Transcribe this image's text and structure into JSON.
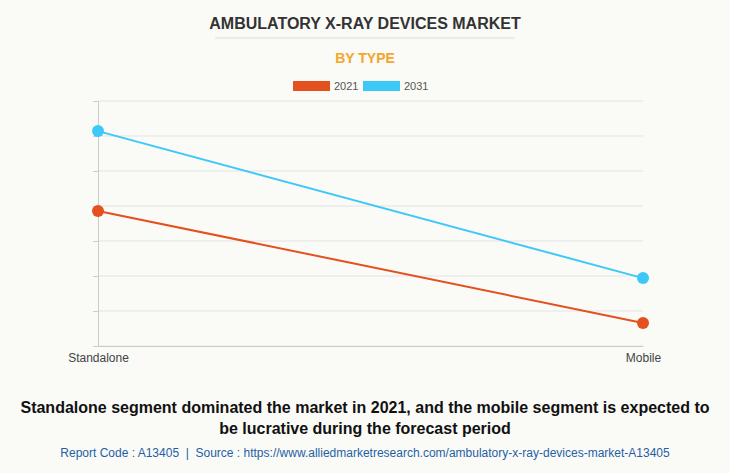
{
  "chart_data": {
    "type": "line",
    "title": "AMBULATORY X-RAY DEVICES MARKET",
    "subtitle": "BY TYPE",
    "categories": [
      "Standalone",
      "Mobile"
    ],
    "series": [
      {
        "name": "2021",
        "color": "#e4501e",
        "values": [
          3.86,
          0.66
        ],
        "marker": "circle"
      },
      {
        "name": "2031",
        "color": "#3dc9f8",
        "values": [
          6.14,
          1.94
        ],
        "marker": "circle"
      }
    ],
    "ylim": [
      0,
      7
    ],
    "yticks": [
      0,
      1,
      2,
      3,
      4,
      5,
      6,
      7
    ],
    "grid": true,
    "tick_labels": "x",
    "legend": "top",
    "annotations": [
      "Standalone segment dominated the market in 2021, and the mobile segment is expected to be lucrative during the forecast period",
      "Report Code : A13405  |  Source : https://www.alliedmarketresearch.com/ambulatory-x-ray-devices-market-A13405"
    ]
  }
}
